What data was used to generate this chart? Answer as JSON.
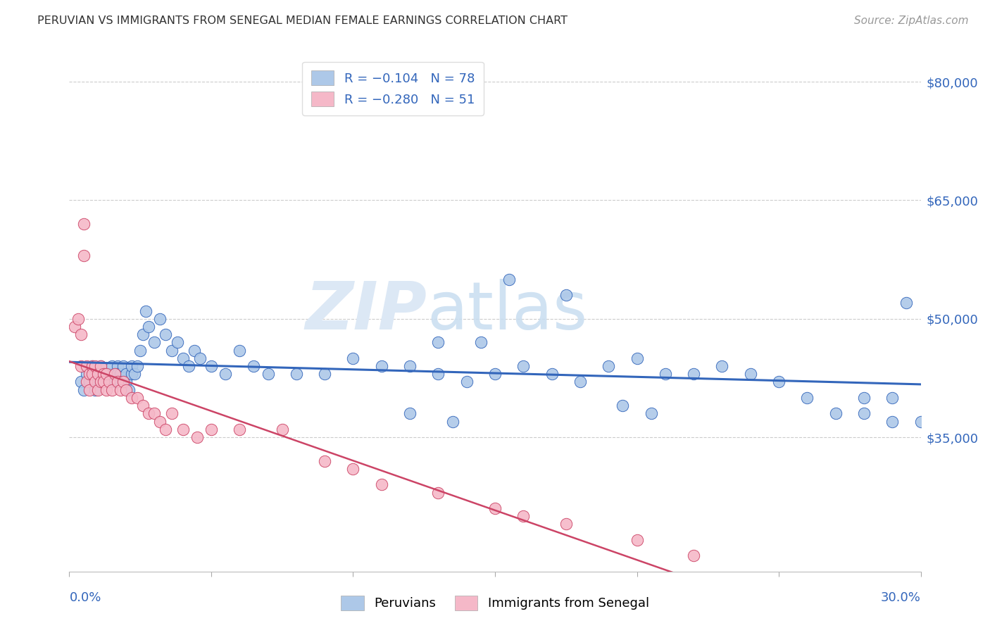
{
  "title": "PERUVIAN VS IMMIGRANTS FROM SENEGAL MEDIAN FEMALE EARNINGS CORRELATION CHART",
  "source": "Source: ZipAtlas.com",
  "ylabel": "Median Female Earnings",
  "yticks": [
    35000,
    50000,
    65000,
    80000
  ],
  "ytick_labels": [
    "$35,000",
    "$50,000",
    "$65,000",
    "$80,000"
  ],
  "xmin": 0.0,
  "xmax": 0.3,
  "ymin": 18000,
  "ymax": 84000,
  "peru_color": "#adc8e8",
  "senegal_color": "#f5b8c8",
  "peru_line_color": "#3366bb",
  "senegal_line_color": "#cc4466",
  "background_color": "#ffffff",
  "watermark_zip": "ZIP",
  "watermark_atlas": "atlas",
  "peru_scatter_x": [
    0.004,
    0.005,
    0.006,
    0.007,
    0.008,
    0.009,
    0.01,
    0.011,
    0.012,
    0.013,
    0.014,
    0.015,
    0.016,
    0.016,
    0.017,
    0.017,
    0.018,
    0.018,
    0.019,
    0.02,
    0.02,
    0.021,
    0.022,
    0.022,
    0.023,
    0.024,
    0.025,
    0.026,
    0.027,
    0.028,
    0.03,
    0.032,
    0.034,
    0.036,
    0.038,
    0.04,
    0.042,
    0.044,
    0.046,
    0.05,
    0.055,
    0.06,
    0.065,
    0.07,
    0.08,
    0.09,
    0.1,
    0.11,
    0.12,
    0.13,
    0.14,
    0.15,
    0.16,
    0.17,
    0.18,
    0.19,
    0.2,
    0.21,
    0.22,
    0.23,
    0.24,
    0.25,
    0.26,
    0.27,
    0.28,
    0.29,
    0.3,
    0.155,
    0.175,
    0.295,
    0.13,
    0.145,
    0.28,
    0.29,
    0.195,
    0.205,
    0.12,
    0.135
  ],
  "peru_scatter_y": [
    42000,
    41000,
    43000,
    42000,
    44000,
    41000,
    43000,
    44000,
    43000,
    42000,
    43000,
    44000,
    43000,
    42000,
    44000,
    43000,
    42000,
    43000,
    44000,
    42000,
    43000,
    41000,
    43000,
    44000,
    43000,
    44000,
    46000,
    48000,
    51000,
    49000,
    47000,
    50000,
    48000,
    46000,
    47000,
    45000,
    44000,
    46000,
    45000,
    44000,
    43000,
    46000,
    44000,
    43000,
    43000,
    43000,
    45000,
    44000,
    44000,
    43000,
    42000,
    43000,
    44000,
    43000,
    42000,
    44000,
    45000,
    43000,
    43000,
    44000,
    43000,
    42000,
    40000,
    38000,
    38000,
    37000,
    37000,
    55000,
    53000,
    52000,
    47000,
    47000,
    40000,
    40000,
    39000,
    38000,
    38000,
    37000
  ],
  "senegal_scatter_x": [
    0.002,
    0.003,
    0.004,
    0.004,
    0.005,
    0.005,
    0.006,
    0.006,
    0.007,
    0.007,
    0.008,
    0.008,
    0.009,
    0.009,
    0.01,
    0.01,
    0.011,
    0.011,
    0.012,
    0.012,
    0.013,
    0.013,
    0.014,
    0.015,
    0.016,
    0.017,
    0.018,
    0.019,
    0.02,
    0.022,
    0.024,
    0.026,
    0.028,
    0.03,
    0.032,
    0.034,
    0.036,
    0.04,
    0.045,
    0.05,
    0.06,
    0.075,
    0.09,
    0.1,
    0.11,
    0.13,
    0.15,
    0.16,
    0.175,
    0.2,
    0.22
  ],
  "senegal_scatter_y": [
    49000,
    50000,
    48000,
    44000,
    62000,
    58000,
    44000,
    42000,
    43000,
    41000,
    44000,
    43000,
    42000,
    44000,
    43000,
    41000,
    44000,
    42000,
    43000,
    42000,
    41000,
    43000,
    42000,
    41000,
    43000,
    42000,
    41000,
    42000,
    41000,
    40000,
    40000,
    39000,
    38000,
    38000,
    37000,
    36000,
    38000,
    36000,
    35000,
    36000,
    36000,
    36000,
    32000,
    31000,
    29000,
    28000,
    26000,
    25000,
    24000,
    22000,
    20000
  ]
}
